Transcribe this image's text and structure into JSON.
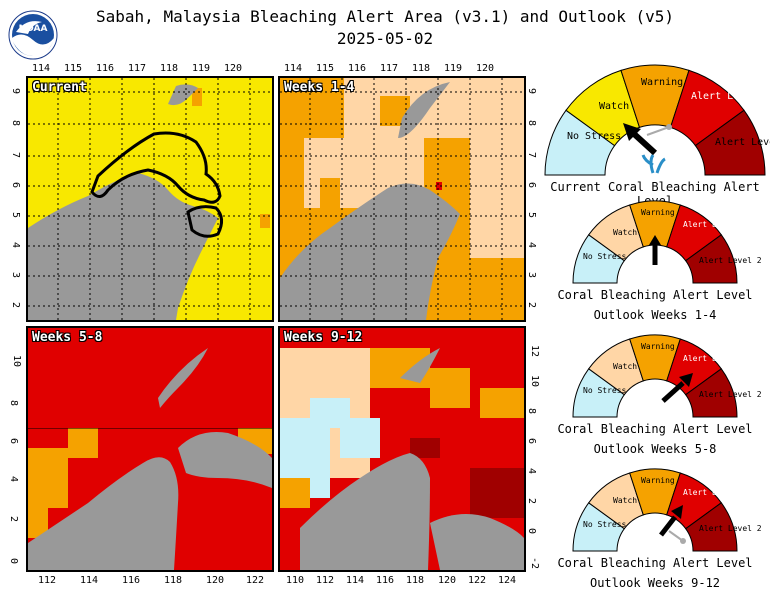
{
  "header": {
    "title": "Sabah, Malaysia Bleaching Alert Area (v3.1) and Outlook (v5)",
    "date": "2025-05-02"
  },
  "colors": {
    "no_stress": "#c8f0f8",
    "watch": "#f8e800",
    "warning": "#f5a200",
    "outlook_low": "#ffd6a6",
    "alert1": "#e00000",
    "alert2": "#a00000",
    "land": "#999999"
  },
  "panels": [
    {
      "id": "current",
      "label": "Current"
    },
    {
      "id": "w1_4",
      "label": "Weeks 1-4"
    },
    {
      "id": "w5_8",
      "label": "Weeks 5-8"
    },
    {
      "id": "w9_12",
      "label": "Weeks 9-12"
    }
  ],
  "axes": {
    "top_lon": [
      "114",
      "115",
      "116",
      "117",
      "118",
      "119",
      "120"
    ],
    "top_lat": [
      "9",
      "8",
      "7",
      "6",
      "5",
      "4",
      "3",
      "2"
    ],
    "bottom_lat": [
      "10",
      "8",
      "6",
      "4",
      "2",
      "0"
    ],
    "bottom_left_lon": [
      "112",
      "114",
      "116",
      "118",
      "120",
      "122"
    ],
    "bottom_right_lon": [
      "110",
      "112",
      "114",
      "116",
      "118",
      "120",
      "122",
      "124"
    ],
    "bottom_right_lat": [
      "12",
      "10",
      "8",
      "6",
      "4",
      "2",
      "0",
      "-2"
    ]
  },
  "gauge_labels": {
    "no_stress": "No Stress",
    "watch": "Watch",
    "warning": "Warning",
    "alert1": "Alert Level 1",
    "alert2": "Alert Level 2"
  },
  "gauges": [
    {
      "caption1": "Current Coral Bleaching Alert Level",
      "caption2": "",
      "level": "watch"
    },
    {
      "caption1": "Coral Bleaching Alert Level",
      "caption2": "Outlook Weeks 1-4",
      "level": "warning"
    },
    {
      "caption1": "Coral Bleaching Alert Level",
      "caption2": "Outlook Weeks 5-8",
      "level": "alert1"
    },
    {
      "caption1": "Coral Bleaching Alert Level",
      "caption2": "Outlook Weeks 9-12",
      "level": "alert1"
    }
  ],
  "logo_text": "NOAA"
}
